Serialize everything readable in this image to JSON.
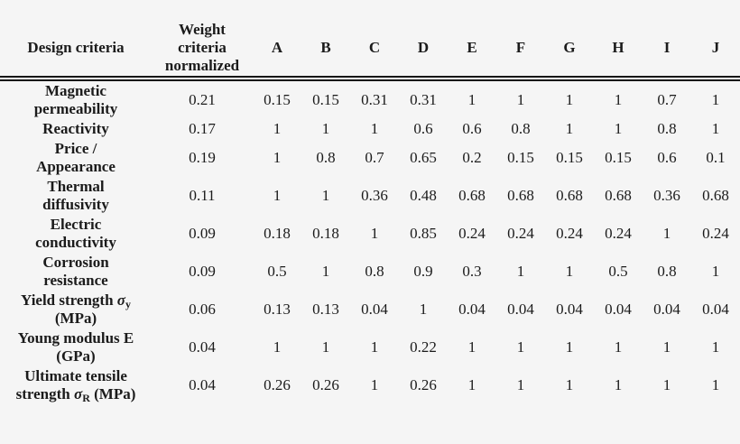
{
  "page": {
    "background_color": "#f5f5f5",
    "text_color": "#1b1b1b",
    "rule_color": "#161616"
  },
  "table": {
    "header": {
      "design_criteria": "Design criteria",
      "weight": "Weight\ncriteria\nnormalized",
      "options": [
        "A",
        "B",
        "C",
        "D",
        "E",
        "F",
        "G",
        "H",
        "I",
        "J"
      ]
    },
    "rows": [
      {
        "label": "Magnetic\npermeability",
        "weight": "0.21",
        "values": [
          "0.15",
          "0.15",
          "0.31",
          "0.31",
          "1",
          "1",
          "1",
          "1",
          "0.7",
          "1"
        ]
      },
      {
        "label": "Reactivity",
        "weight": "0.17",
        "values": [
          "1",
          "1",
          "1",
          "0.6",
          "0.6",
          "0.8",
          "1",
          "1",
          "0.8",
          "1"
        ]
      },
      {
        "label": "Price /\nAppearance",
        "weight": "0.19",
        "values": [
          "1",
          "0.8",
          "0.7",
          "0.65",
          "0.2",
          "0.15",
          "0.15",
          "0.15",
          "0.6",
          "0.1"
        ]
      },
      {
        "label": "Thermal\ndiffusivity",
        "weight": "0.11",
        "values": [
          "1",
          "1",
          "0.36",
          "0.48",
          "0.68",
          "0.68",
          "0.68",
          "0.68",
          "0.36",
          "0.68"
        ]
      },
      {
        "label": "Electric\nconductivity",
        "weight": "0.09",
        "values": [
          "0.18",
          "0.18",
          "1",
          "0.85",
          "0.24",
          "0.24",
          "0.24",
          "0.24",
          "1",
          "0.24"
        ]
      },
      {
        "label": "Corrosion\nresistance",
        "weight": "0.09",
        "values": [
          "0.5",
          "1",
          "0.8",
          "0.9",
          "0.3",
          "1",
          "1",
          "0.5",
          "0.8",
          "1"
        ]
      },
      {
        "label": "Yield strength σ_y\n(MPa)",
        "weight": "0.06",
        "values": [
          "0.13",
          "0.13",
          "0.04",
          "1",
          "0.04",
          "0.04",
          "0.04",
          "0.04",
          "0.04",
          "0.04"
        ]
      },
      {
        "label": "Young modulus E\n(GPa)",
        "weight": "0.04",
        "values": [
          "1",
          "1",
          "1",
          "0.22",
          "1",
          "1",
          "1",
          "1",
          "1",
          "1"
        ]
      },
      {
        "label": "Ultimate tensile\nstrength σ_R (MPa)",
        "weight": "0.04",
        "values": [
          "0.26",
          "0.26",
          "1",
          "0.26",
          "1",
          "1",
          "1",
          "1",
          "1",
          "1"
        ]
      }
    ]
  },
  "chart_data": {
    "type": "table",
    "title": "Design criteria weighting matrix",
    "columns": [
      "Design criteria",
      "Weight criteria normalized",
      "A",
      "B",
      "C",
      "D",
      "E",
      "F",
      "G",
      "H",
      "I",
      "J"
    ],
    "rows": [
      [
        "Magnetic permeability",
        0.21,
        0.15,
        0.15,
        0.31,
        0.31,
        1,
        1,
        1,
        1,
        0.7,
        1
      ],
      [
        "Reactivity",
        0.17,
        1,
        1,
        1,
        0.6,
        0.6,
        0.8,
        1,
        1,
        0.8,
        1
      ],
      [
        "Price / Appearance",
        0.19,
        1,
        0.8,
        0.7,
        0.65,
        0.2,
        0.15,
        0.15,
        0.15,
        0.6,
        0.1
      ],
      [
        "Thermal diffusivity",
        0.11,
        1,
        1,
        0.36,
        0.48,
        0.68,
        0.68,
        0.68,
        0.68,
        0.36,
        0.68
      ],
      [
        "Electric conductivity",
        0.09,
        0.18,
        0.18,
        1,
        0.85,
        0.24,
        0.24,
        0.24,
        0.24,
        1,
        0.24
      ],
      [
        "Corrosion resistance",
        0.09,
        0.5,
        1,
        0.8,
        0.9,
        0.3,
        1,
        1,
        0.5,
        0.8,
        1
      ],
      [
        "Yield strength σy (MPa)",
        0.06,
        0.13,
        0.13,
        0.04,
        1,
        0.04,
        0.04,
        0.04,
        0.04,
        0.04,
        0.04
      ],
      [
        "Young modulus E (GPa)",
        0.04,
        1,
        1,
        1,
        0.22,
        1,
        1,
        1,
        1,
        1,
        1
      ],
      [
        "Ultimate tensile strength σR (MPa)",
        0.04,
        0.26,
        0.26,
        1,
        0.26,
        1,
        1,
        1,
        1,
        1,
        1
      ]
    ]
  }
}
